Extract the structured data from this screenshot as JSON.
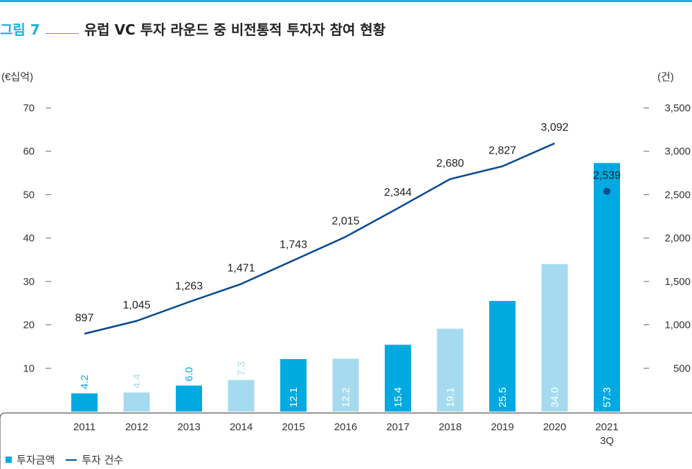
{
  "figure": {
    "label": "그림 7",
    "title": "유럽 VC 투자 라운드 중 비전통적 투자자 참여 현황"
  },
  "colors": {
    "accent": "#1ab0d8",
    "bar_dark": "#00a9e0",
    "bar_light": "#a6dbef",
    "line": "#0b4a8f"
  },
  "legend": {
    "amount_label": "투자금액",
    "count_label": "투자 건수",
    "position": "bottom-left"
  },
  "chart_data": {
    "type": "bar",
    "title": "",
    "categories": [
      "2011",
      "2012",
      "2013",
      "2014",
      "2015",
      "2016",
      "2017",
      "2018",
      "2019",
      "2020",
      "2021\n3Q"
    ],
    "y_left": {
      "unit_label": "(€십억)",
      "ticks": [
        "10",
        "20",
        "30",
        "40",
        "50",
        "60",
        "70"
      ],
      "ylim": [
        0,
        70
      ]
    },
    "y_right": {
      "unit_label": "(건)",
      "ticks": [
        "500",
        "1,000",
        "1,500",
        "2,000",
        "2,500",
        "3,000",
        "3,500"
      ],
      "ylim": [
        0,
        3500
      ]
    },
    "series": [
      {
        "name": "투자금액",
        "type": "bar",
        "axis": "left",
        "values": [
          4.2,
          4.4,
          6.0,
          7.3,
          12.1,
          12.2,
          15.4,
          19.1,
          25.5,
          34.0,
          57.3
        ],
        "labels": [
          "4.2",
          "4.4",
          "6.0",
          "7.3",
          "12.1",
          "12.2",
          "15.4",
          "19.1",
          "25.5",
          "34.0",
          "57.3"
        ],
        "shade": [
          "dark",
          "light",
          "dark",
          "light",
          "dark",
          "light",
          "dark",
          "light",
          "dark",
          "light",
          "dark"
        ]
      },
      {
        "name": "투자 건수",
        "type": "line",
        "axis": "right",
        "values": [
          897,
          1045,
          1263,
          1471,
          1743,
          2015,
          2344,
          2680,
          2827,
          3092,
          2539
        ],
        "labels": [
          "897",
          "1,045",
          "1,263",
          "1,471",
          "1,743",
          "2,015",
          "2,344",
          "2,680",
          "2,827",
          "3,092",
          "2,539"
        ],
        "marker_only_last": true
      }
    ]
  }
}
